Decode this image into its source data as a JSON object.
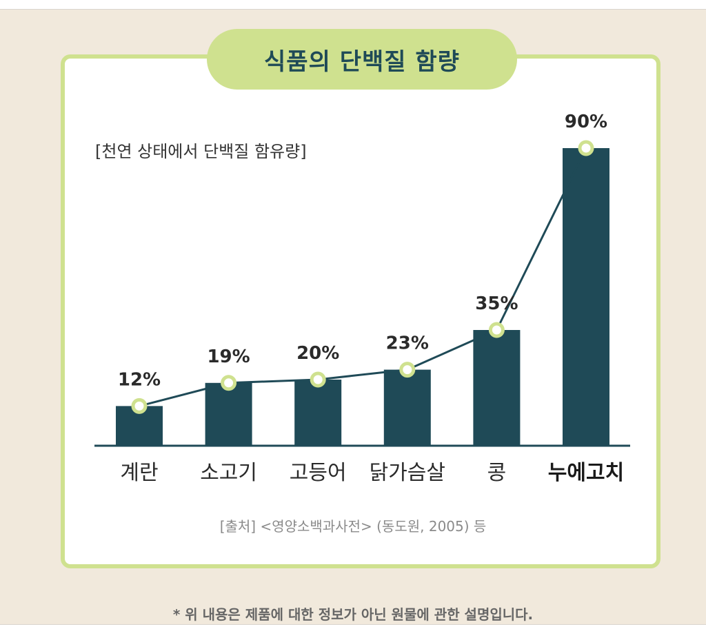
{
  "title": "식품의 단백질 함량",
  "footnote": "* 위 내용은 제품에 대한 정보가 아닌 원물에 관한 설명입니다.",
  "colors": {
    "background": "#f1e9dc",
    "accent": "#cfe18f",
    "bar": "#1f4a57",
    "text_dark": "#1f4a57"
  },
  "chart_data": {
    "type": "bar",
    "title": "",
    "subtitle": "[천연 상태에서 단백질 함유량]",
    "categories": [
      "계란",
      "소고기",
      "고등어",
      "닭가슴살",
      "콩",
      "누에고치"
    ],
    "values": [
      12,
      19,
      20,
      23,
      35,
      90
    ],
    "value_labels": [
      "12%",
      "19%",
      "20%",
      "23%",
      "35%",
      "90%"
    ],
    "highlight_category": "누에고치",
    "unit": "%",
    "ylim": [
      0,
      100
    ],
    "overlay_line": true,
    "grid": false,
    "legend": "none",
    "source": "[출처] <영양소백과사전> (동도원, 2005) 등"
  }
}
